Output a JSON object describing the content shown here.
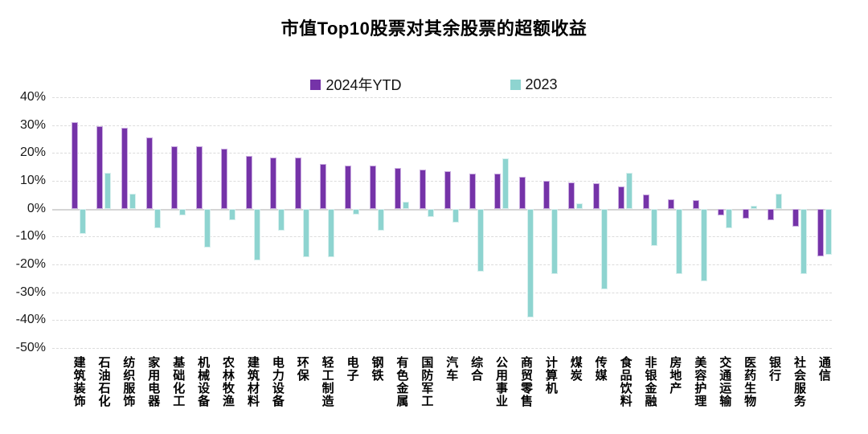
{
  "chart_data": {
    "type": "bar",
    "title": "市值Top10股票对其余股票的超额收益",
    "categories": [
      "建筑装饰",
      "石油石化",
      "纺织服饰",
      "家用电器",
      "基础化工",
      "机械设备",
      "农林牧渔",
      "建筑材料",
      "电力设备",
      "环保",
      "轻工制造",
      "电子",
      "钢铁",
      "有色金属",
      "国防军工",
      "汽车",
      "综合",
      "公用事业",
      "商贸零售",
      "计算机",
      "煤炭",
      "传媒",
      "食品饮料",
      "非银金融",
      "房地产",
      "美容护理",
      "交通运输",
      "医药生物",
      "银行",
      "社会服务",
      "通信"
    ],
    "series": [
      {
        "name": "2024年YTD",
        "color": "#7533A8",
        "edge_color": "#C9ACE0",
        "values": [
          31,
          29.5,
          29,
          25.5,
          22.5,
          22.5,
          21.5,
          19,
          18.5,
          18.5,
          16,
          15.5,
          15.5,
          14.5,
          14,
          13.5,
          12.5,
          12.5,
          11.5,
          10,
          9.5,
          9,
          8,
          5,
          3.5,
          3,
          -2.5,
          -3.5,
          -4,
          -6.5,
          -17
        ]
      },
      {
        "name": "2023",
        "color": "#8ED4D0",
        "edge_color": "#D8F0EE",
        "values": [
          -9,
          13,
          5.5,
          -7,
          -2.5,
          -14,
          -4,
          -18.5,
          -8,
          -17.5,
          -17.5,
          -2,
          -8,
          2.5,
          -3,
          -5,
          -22.5,
          18,
          -39,
          -23.5,
          2,
          -29,
          13,
          -13.5,
          -23.5,
          -26,
          -7,
          1,
          5.5,
          -23.5,
          -16.5
        ]
      }
    ],
    "unit": "%",
    "y_ticks": [
      "40%",
      "30%",
      "20%",
      "10%",
      "0%",
      "-10%",
      "-20%",
      "-30%",
      "-40%",
      "-50%"
    ],
    "ylim": [
      -50,
      40
    ],
    "grid": "horizontal-dashed",
    "zero_line": true,
    "legend_position": "top-center",
    "xlabel": "",
    "ylabel": ""
  },
  "colors": {
    "gridline": "#DCDCDC",
    "zero_line": "#D5D5D5",
    "text": "#1A1A1A",
    "background": "#FFFFFF"
  }
}
